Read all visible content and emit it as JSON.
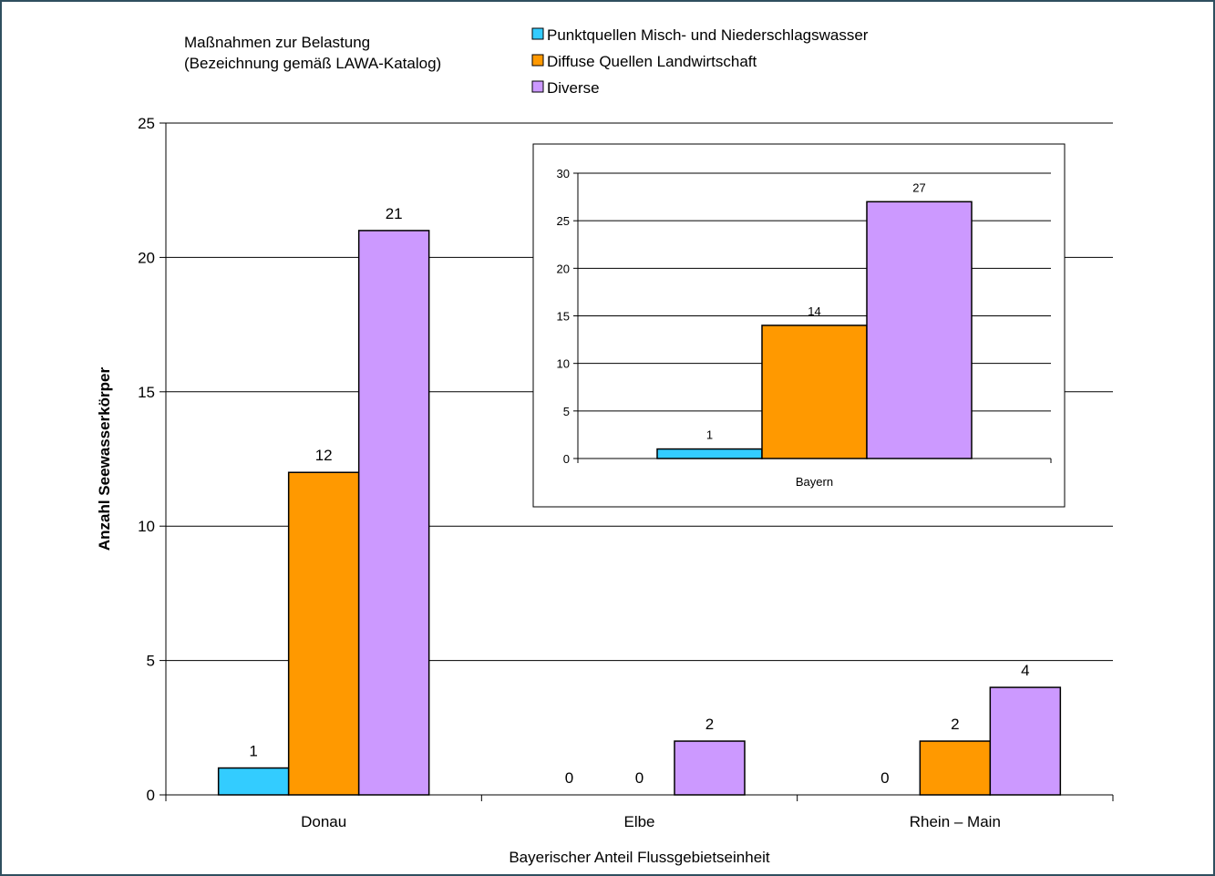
{
  "chart_data": [
    {
      "type": "bar",
      "categories": [
        "Donau",
        "Elbe",
        "Rhein – Main"
      ],
      "series": [
        {
          "name": "Punktquellen Misch- und Niederschlagswasser",
          "color": "#33CCFF",
          "values": [
            1,
            0,
            0
          ]
        },
        {
          "name": "Diffuse Quellen Landwirtschaft",
          "color": "#FF9900",
          "values": [
            12,
            0,
            2
          ]
        },
        {
          "name": "Diverse",
          "color": "#CC99FF",
          "values": [
            21,
            2,
            4
          ]
        }
      ],
      "legend_title": "Maßnahmen zur Belastung\n(Bezeichnung gemäß LAWA-Katalog)",
      "xlabel": "Bayerischer Anteil Flussgebietseinheit",
      "ylabel": "Anzahl Seewasserkörper",
      "ylim": [
        0,
        25
      ],
      "yticks": [
        0,
        5,
        10,
        15,
        20,
        25
      ],
      "grid": true,
      "legend_position": "top"
    },
    {
      "type": "bar",
      "categories": [
        "Bayern"
      ],
      "series": [
        {
          "name": "Punktquellen Misch- und Niederschlagswasser",
          "color": "#33CCFF",
          "values": [
            1
          ]
        },
        {
          "name": "Diffuse Quellen Landwirtschaft",
          "color": "#FF9900",
          "values": [
            14
          ]
        },
        {
          "name": "Diverse",
          "color": "#CC99FF",
          "values": [
            27
          ]
        }
      ],
      "ylim": [
        0,
        30
      ],
      "yticks": [
        0,
        5,
        10,
        15,
        20,
        25,
        30
      ],
      "grid": true,
      "inset": true
    }
  ]
}
